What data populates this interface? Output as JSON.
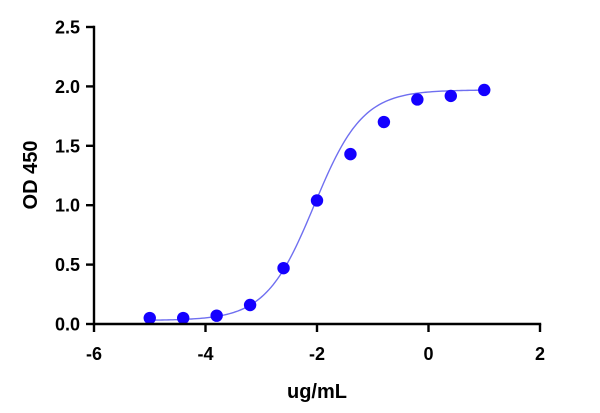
{
  "chart_data": {
    "type": "scatter",
    "title": "",
    "xlabel": "ug/mL",
    "ylabel": "OD 450",
    "xlim": [
      -6,
      2
    ],
    "ylim": [
      0,
      2.5
    ],
    "x_ticks": [
      -6,
      -4,
      -2,
      0,
      2
    ],
    "x_tick_labels": [
      "-6",
      "-4",
      "-2",
      "0",
      "2"
    ],
    "y_ticks": [
      0,
      0.5,
      1,
      1.5,
      2,
      2.5
    ],
    "y_tick_labels": [
      "0.0",
      "0.5",
      "1.0",
      "1.5",
      "2.0",
      "2.5"
    ],
    "grid": false,
    "series": [
      {
        "marker_color": "#1400ff",
        "x": [
          -5.0,
          -4.4,
          -3.8,
          -3.2,
          -2.6,
          -2.0,
          -1.4,
          -0.8,
          -0.2,
          0.4,
          1.0
        ],
        "y": [
          0.05,
          0.05,
          0.07,
          0.16,
          0.47,
          1.04,
          1.43,
          1.7,
          1.89,
          1.92,
          1.97
        ]
      }
    ],
    "fit_curve": {
      "type": "4PL",
      "line_color": "#6f6ff0",
      "bottom": 0.03,
      "top": 1.97,
      "log_ec50": -2.05,
      "hill_slope": 1.0,
      "x_range": [
        -5.0,
        1.0
      ]
    }
  }
}
